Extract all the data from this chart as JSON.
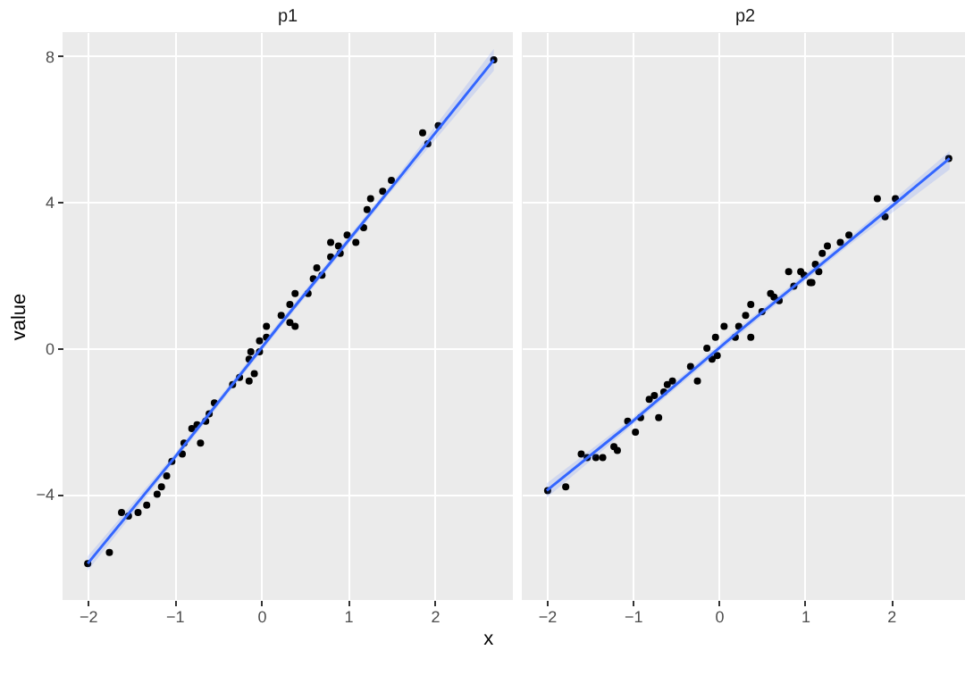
{
  "chart_data": [
    {
      "type": "scatter",
      "title": "p1",
      "xlabel": "x",
      "ylabel": "value",
      "xlim": [
        -2.29,
        2.9
      ],
      "ylim": [
        -6.9,
        8.66
      ],
      "xticks": [
        -2,
        -1,
        0,
        1,
        2
      ],
      "yticks": [
        -4,
        0,
        4,
        8
      ],
      "grid": true,
      "series": [
        {
          "marker": "circle",
          "color": "#000000",
          "x": [
            -2.0,
            -1.75,
            -1.61,
            -1.53,
            -1.42,
            -1.32,
            -1.2,
            -1.15,
            -1.09,
            -1.03,
            -0.91,
            -0.89,
            -0.8,
            -0.74,
            -0.7,
            -0.64,
            -0.6,
            -0.54,
            -0.33,
            -0.25,
            -0.14,
            -0.14,
            -0.12,
            -0.08,
            -0.02,
            -0.02,
            0.06,
            0.06,
            0.23,
            0.33,
            0.33,
            0.39,
            0.39,
            0.54,
            0.6,
            0.64,
            0.7,
            0.8,
            0.8,
            0.89,
            0.91,
            0.99,
            1.09,
            1.18,
            1.22,
            1.26,
            1.4,
            1.5,
            1.86,
            1.92,
            2.04,
            2.68
          ],
          "values": [
            -5.9,
            -5.6,
            -4.5,
            -4.6,
            -4.5,
            -4.3,
            -4.0,
            -3.8,
            -3.5,
            -3.1,
            -2.9,
            -2.6,
            -2.2,
            -2.1,
            -2.6,
            -2.0,
            -1.8,
            -1.5,
            -1.0,
            -0.8,
            -0.9,
            -0.3,
            -0.1,
            -0.7,
            -0.1,
            0.2,
            0.3,
            0.6,
            0.9,
            0.7,
            1.2,
            0.6,
            1.5,
            1.5,
            1.9,
            2.2,
            2.0,
            2.5,
            2.9,
            2.8,
            2.6,
            3.1,
            2.9,
            3.3,
            3.8,
            4.1,
            4.3,
            4.6,
            5.9,
            5.6,
            6.1,
            7.9
          ]
        },
        {
          "type": "line",
          "color": "#3366ff",
          "x": [
            -2.0,
            -1.0,
            0.2,
            1.5,
            2.68
          ],
          "values": [
            -5.9,
            -3.0,
            0.6,
            4.4,
            7.9
          ],
          "lower": [
            -6.1,
            -3.1,
            0.5,
            4.3,
            7.6
          ],
          "upper": [
            -5.7,
            -2.9,
            0.7,
            4.5,
            8.2
          ]
        }
      ]
    },
    {
      "type": "scatter",
      "title": "p2",
      "xlim": [
        -2.29,
        2.9
      ],
      "ylim": [
        -6.9,
        8.66
      ],
      "xticks": [
        -2,
        -1,
        0,
        1,
        2
      ],
      "yticks": [
        -4,
        0,
        4,
        8
      ],
      "grid": true,
      "tick_labels": "x",
      "series": [
        {
          "marker": "circle",
          "color": "#000000",
          "x": [
            -1.99,
            -1.78,
            -1.6,
            -1.53,
            -1.43,
            -1.35,
            -1.22,
            -1.18,
            -1.06,
            -0.97,
            -0.91,
            -0.81,
            -0.75,
            -0.7,
            -0.64,
            -0.6,
            -0.54,
            -0.33,
            -0.25,
            -0.14,
            -0.08,
            -0.04,
            -0.02,
            0.06,
            0.19,
            0.23,
            0.31,
            0.37,
            0.37,
            0.5,
            0.6,
            0.64,
            0.7,
            0.81,
            0.87,
            0.95,
            0.99,
            1.06,
            1.08,
            1.12,
            1.16,
            1.2,
            1.26,
            1.41,
            1.51,
            1.84,
            1.93,
            2.05,
            2.67
          ],
          "values": [
            -3.9,
            -3.8,
            -2.9,
            -3.0,
            -3.0,
            -3.0,
            -2.7,
            -2.8,
            -2.0,
            -2.3,
            -1.9,
            -1.4,
            -1.3,
            -1.9,
            -1.2,
            -1.0,
            -0.9,
            -0.5,
            -0.9,
            0.0,
            -0.3,
            0.3,
            -0.2,
            0.6,
            0.3,
            0.6,
            0.9,
            0.3,
            1.2,
            1.0,
            1.5,
            1.4,
            1.3,
            2.1,
            1.7,
            2.1,
            2.0,
            1.8,
            1.8,
            2.3,
            2.1,
            2.6,
            2.8,
            2.9,
            3.1,
            4.1,
            3.6,
            4.1,
            5.2
          ]
        },
        {
          "type": "line",
          "color": "#3366ff",
          "x": [
            -2.0,
            -1.0,
            0.2,
            1.5,
            2.68
          ],
          "values": [
            -3.9,
            -2.0,
            0.4,
            2.9,
            5.2
          ],
          "lower": [
            -4.1,
            -2.1,
            0.3,
            2.8,
            4.9
          ],
          "upper": [
            -3.7,
            -1.9,
            0.5,
            3.0,
            5.4
          ]
        }
      ]
    }
  ]
}
